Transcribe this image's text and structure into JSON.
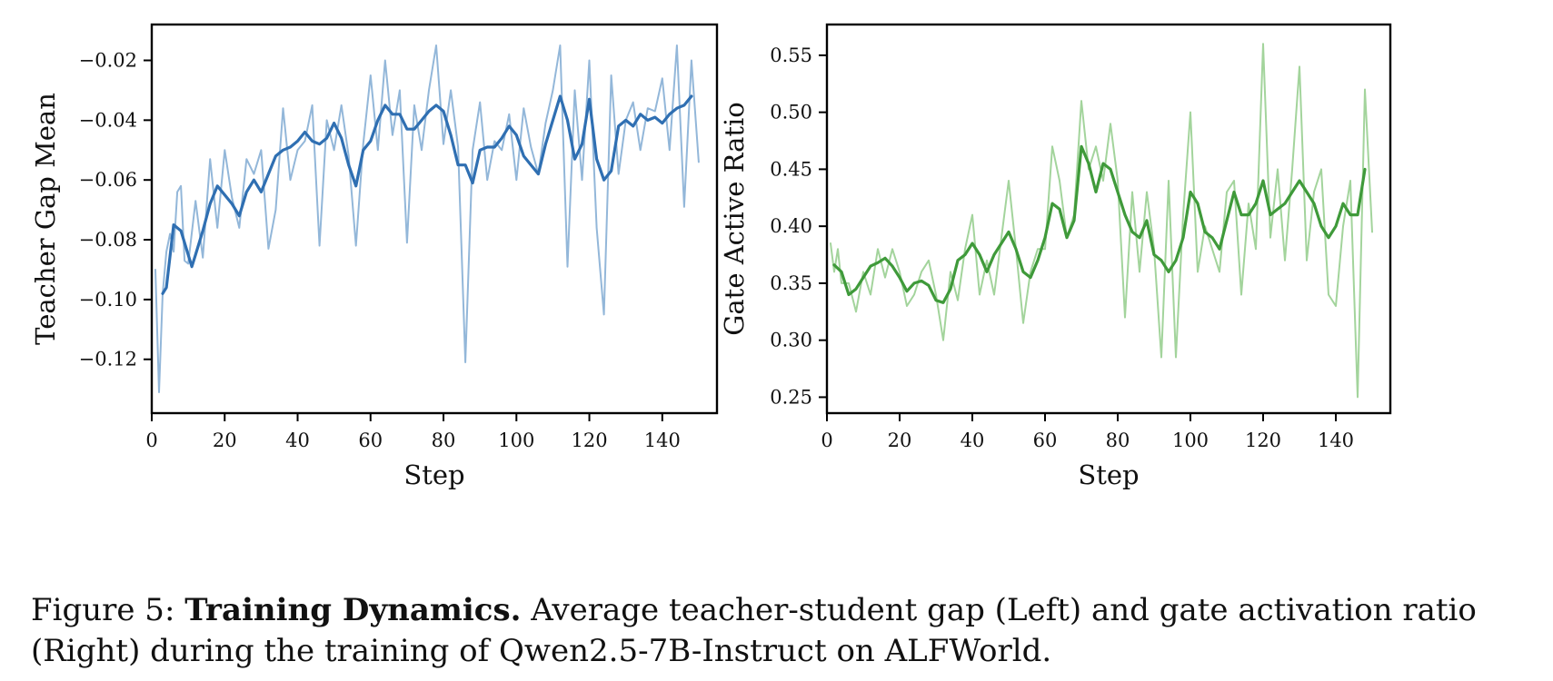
{
  "chart_data": [
    {
      "type": "line",
      "title": "",
      "xlabel": "Step",
      "ylabel": "Teacher Gap Mean",
      "xlim": [
        0,
        155
      ],
      "ylim": [
        -0.138,
        -0.008
      ],
      "x_ticks": [
        0,
        20,
        40,
        60,
        80,
        100,
        120,
        140
      ],
      "y_ticks": [
        -0.12,
        -0.1,
        -0.08,
        -0.06,
        -0.04,
        -0.02
      ],
      "y_tick_labels": [
        "−0.12",
        "−0.10",
        "−0.08",
        "−0.06",
        "−0.04",
        "−0.02"
      ],
      "grid": false,
      "colors": {
        "raw": "#93b7d9",
        "smooth": "#2f6fb2"
      },
      "series": [
        {
          "role": "raw",
          "x": [
            1,
            2,
            3,
            4,
            5,
            6,
            7,
            8,
            9,
            10,
            12,
            14,
            16,
            18,
            20,
            22,
            24,
            26,
            28,
            30,
            32,
            34,
            36,
            38,
            40,
            42,
            44,
            46,
            48,
            50,
            52,
            54,
            56,
            58,
            60,
            62,
            64,
            66,
            68,
            70,
            72,
            74,
            76,
            78,
            80,
            82,
            84,
            86,
            88,
            90,
            92,
            94,
            96,
            98,
            100,
            102,
            104,
            106,
            108,
            110,
            112,
            114,
            116,
            118,
            120,
            122,
            124,
            126,
            128,
            130,
            132,
            134,
            136,
            138,
            140,
            142,
            144,
            146,
            148,
            150
          ],
          "y": [
            -0.09,
            -0.131,
            -0.098,
            -0.084,
            -0.078,
            -0.084,
            -0.064,
            -0.062,
            -0.087,
            -0.088,
            -0.067,
            -0.086,
            -0.053,
            -0.076,
            -0.05,
            -0.066,
            -0.076,
            -0.053,
            -0.058,
            -0.05,
            -0.083,
            -0.07,
            -0.036,
            -0.06,
            -0.05,
            -0.047,
            -0.035,
            -0.082,
            -0.04,
            -0.05,
            -0.035,
            -0.052,
            -0.082,
            -0.048,
            -0.025,
            -0.05,
            -0.02,
            -0.045,
            -0.03,
            -0.081,
            -0.035,
            -0.05,
            -0.03,
            -0.015,
            -0.048,
            -0.03,
            -0.049,
            -0.121,
            -0.05,
            -0.034,
            -0.06,
            -0.047,
            -0.05,
            -0.038,
            -0.06,
            -0.036,
            -0.049,
            -0.058,
            -0.041,
            -0.03,
            -0.015,
            -0.089,
            -0.03,
            -0.06,
            -0.02,
            -0.076,
            -0.105,
            -0.025,
            -0.058,
            -0.04,
            -0.034,
            -0.05,
            -0.036,
            -0.037,
            -0.026,
            -0.05,
            -0.015,
            -0.069,
            -0.02,
            -0.054
          ]
        },
        {
          "role": "smoothed",
          "x": [
            3,
            4,
            6,
            8,
            10,
            11,
            12,
            14,
            16,
            18,
            20,
            22,
            24,
            26,
            28,
            30,
            32,
            34,
            36,
            38,
            40,
            42,
            44,
            46,
            48,
            50,
            52,
            54,
            56,
            58,
            60,
            62,
            64,
            66,
            68,
            70,
            72,
            74,
            76,
            78,
            80,
            82,
            84,
            86,
            88,
            90,
            92,
            94,
            96,
            98,
            100,
            102,
            104,
            106,
            108,
            110,
            112,
            114,
            116,
            118,
            120,
            122,
            124,
            126,
            128,
            130,
            132,
            134,
            136,
            138,
            140,
            142,
            144,
            146,
            148
          ],
          "y": [
            -0.098,
            -0.096,
            -0.075,
            -0.077,
            -0.085,
            -0.089,
            -0.085,
            -0.077,
            -0.068,
            -0.062,
            -0.065,
            -0.068,
            -0.072,
            -0.064,
            -0.06,
            -0.064,
            -0.058,
            -0.052,
            -0.05,
            -0.049,
            -0.047,
            -0.044,
            -0.047,
            -0.048,
            -0.046,
            -0.041,
            -0.046,
            -0.055,
            -0.062,
            -0.05,
            -0.047,
            -0.04,
            -0.035,
            -0.038,
            -0.038,
            -0.043,
            -0.043,
            -0.04,
            -0.037,
            -0.035,
            -0.037,
            -0.045,
            -0.055,
            -0.055,
            -0.061,
            -0.05,
            -0.049,
            -0.049,
            -0.046,
            -0.042,
            -0.045,
            -0.052,
            -0.055,
            -0.058,
            -0.048,
            -0.04,
            -0.032,
            -0.04,
            -0.053,
            -0.048,
            -0.033,
            -0.053,
            -0.06,
            -0.057,
            -0.042,
            -0.04,
            -0.042,
            -0.038,
            -0.04,
            -0.039,
            -0.041,
            -0.038,
            -0.036,
            -0.035,
            -0.032
          ]
        }
      ]
    },
    {
      "type": "line",
      "title": "",
      "xlabel": "Step",
      "ylabel": "Gate Active Ratio",
      "xlim": [
        0,
        155
      ],
      "ylim": [
        0.236,
        0.577
      ],
      "x_ticks": [
        0,
        20,
        40,
        60,
        80,
        100,
        120,
        140
      ],
      "y_ticks": [
        0.25,
        0.3,
        0.35,
        0.4,
        0.45,
        0.5,
        0.55
      ],
      "y_tick_labels": [
        "0.25",
        "0.30",
        "0.35",
        "0.40",
        "0.45",
        "0.50",
        "0.55"
      ],
      "grid": false,
      "colors": {
        "raw": "#a3d49c",
        "smooth": "#3f9a3a"
      },
      "series": [
        {
          "role": "raw",
          "x": [
            1,
            2,
            3,
            4,
            6,
            8,
            10,
            12,
            14,
            16,
            18,
            20,
            22,
            24,
            26,
            28,
            30,
            32,
            34,
            36,
            38,
            40,
            42,
            44,
            46,
            48,
            50,
            52,
            54,
            56,
            58,
            60,
            62,
            64,
            66,
            68,
            70,
            72,
            74,
            76,
            78,
            80,
            82,
            84,
            86,
            88,
            90,
            92,
            94,
            96,
            98,
            100,
            102,
            104,
            106,
            108,
            110,
            112,
            114,
            116,
            118,
            120,
            122,
            124,
            126,
            128,
            130,
            132,
            134,
            136,
            138,
            140,
            142,
            144,
            146,
            148,
            150
          ],
          "y": [
            0.385,
            0.36,
            0.38,
            0.35,
            0.35,
            0.325,
            0.36,
            0.34,
            0.38,
            0.355,
            0.38,
            0.36,
            0.33,
            0.34,
            0.36,
            0.37,
            0.34,
            0.3,
            0.36,
            0.335,
            0.38,
            0.41,
            0.34,
            0.37,
            0.34,
            0.39,
            0.44,
            0.38,
            0.315,
            0.36,
            0.38,
            0.38,
            0.47,
            0.44,
            0.39,
            0.41,
            0.51,
            0.45,
            0.47,
            0.44,
            0.49,
            0.44,
            0.32,
            0.43,
            0.36,
            0.43,
            0.38,
            0.285,
            0.44,
            0.285,
            0.41,
            0.5,
            0.36,
            0.4,
            0.38,
            0.36,
            0.43,
            0.44,
            0.34,
            0.42,
            0.38,
            0.56,
            0.39,
            0.45,
            0.37,
            0.45,
            0.54,
            0.37,
            0.43,
            0.45,
            0.34,
            0.33,
            0.4,
            0.44,
            0.25,
            0.52,
            0.395
          ]
        },
        {
          "role": "smoothed",
          "x": [
            2,
            4,
            6,
            8,
            10,
            12,
            14,
            16,
            18,
            20,
            22,
            24,
            26,
            28,
            30,
            32,
            34,
            36,
            38,
            40,
            42,
            44,
            46,
            48,
            50,
            52,
            54,
            56,
            58,
            60,
            62,
            64,
            66,
            68,
            70,
            72,
            74,
            76,
            78,
            80,
            82,
            84,
            86,
            88,
            90,
            92,
            94,
            96,
            98,
            100,
            102,
            104,
            106,
            108,
            110,
            112,
            114,
            116,
            118,
            120,
            122,
            124,
            126,
            128,
            130,
            132,
            134,
            136,
            138,
            140,
            142,
            144,
            146,
            148
          ],
          "y": [
            0.366,
            0.36,
            0.34,
            0.345,
            0.355,
            0.365,
            0.368,
            0.372,
            0.365,
            0.355,
            0.343,
            0.35,
            0.352,
            0.348,
            0.335,
            0.333,
            0.345,
            0.37,
            0.375,
            0.385,
            0.375,
            0.36,
            0.375,
            0.385,
            0.395,
            0.38,
            0.36,
            0.355,
            0.37,
            0.39,
            0.42,
            0.415,
            0.39,
            0.405,
            0.47,
            0.455,
            0.43,
            0.455,
            0.45,
            0.43,
            0.41,
            0.395,
            0.39,
            0.405,
            0.375,
            0.37,
            0.36,
            0.37,
            0.39,
            0.43,
            0.42,
            0.395,
            0.39,
            0.38,
            0.405,
            0.43,
            0.41,
            0.41,
            0.42,
            0.44,
            0.41,
            0.415,
            0.42,
            0.43,
            0.44,
            0.43,
            0.42,
            0.4,
            0.39,
            0.4,
            0.42,
            0.41,
            0.41,
            0.45
          ]
        }
      ]
    }
  ],
  "caption": {
    "prefix": "Figure 5: ",
    "bold": "Training Dynamics.",
    "rest": " Average teacher-student gap (Left) and gate activation ratio (Right) during the training of Qwen2.5-7B-Instruct on ALFWorld."
  }
}
